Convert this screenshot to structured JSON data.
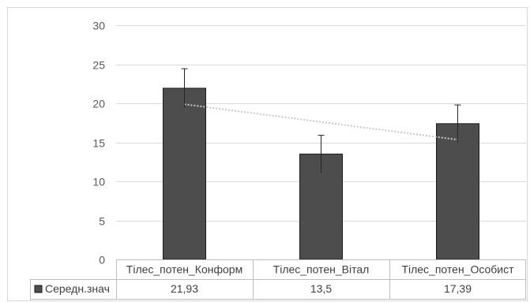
{
  "chart_data": {
    "type": "bar",
    "categories": [
      "Тілес_потен_Конформ",
      "Тілес_потен_Вітал",
      "Тілес_потен_Особист"
    ],
    "series": [
      {
        "name": "Середн.знач",
        "values": [
          21.93,
          13.5,
          17.39
        ],
        "error_up": [
          2.5,
          2.4,
          2.4
        ],
        "error_down": [
          2.5,
          2.4,
          2.4
        ],
        "color": "#4d4d4d",
        "table_labels": [
          "21,93",
          "13,5",
          "17,39"
        ]
      }
    ],
    "trendline": {
      "type": "linear",
      "style": "dotted",
      "color": "#c8c8c8"
    },
    "ylim": [
      0,
      30
    ],
    "yticks": [
      0,
      5,
      10,
      15,
      20,
      25,
      30
    ],
    "grid": true,
    "legend": "data-table",
    "title": "",
    "xlabel": "",
    "ylabel": ""
  }
}
